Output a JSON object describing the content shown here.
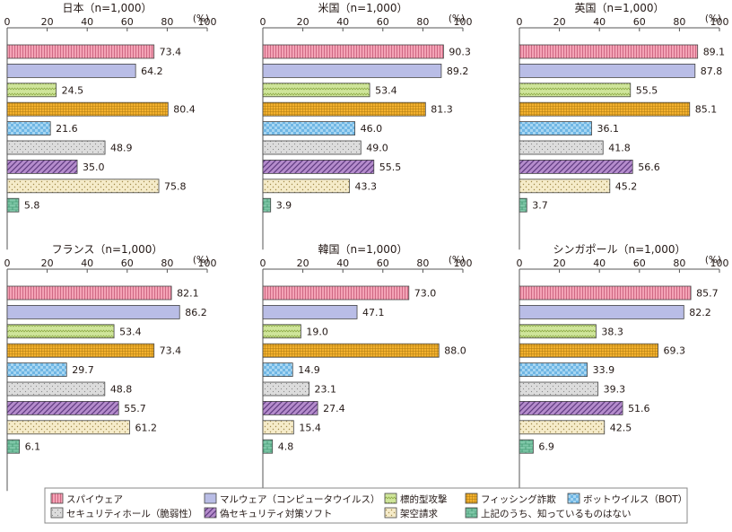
{
  "unit_label": "(%)",
  "axis_ticks": [
    0,
    20,
    40,
    60,
    80,
    100
  ],
  "series": [
    {
      "name": "スパイウェア",
      "color": "#f4a3b6",
      "pattern": "vlines"
    },
    {
      "name": "マルウェア（コンピュータウイルス）",
      "color": "#b9bde6",
      "pattern": "solid"
    },
    {
      "name": "標的型攻撃",
      "color": "#cfe59a",
      "pattern": "zigzag"
    },
    {
      "name": "フィッシング詐欺",
      "color": "#f3b12e",
      "pattern": "grid"
    },
    {
      "name": "ボットウイルス（BOT）",
      "color": "#a7d6f2",
      "pattern": "check"
    },
    {
      "name": "セキュリティホール（脆弱性）",
      "color": "#dcdcdc",
      "pattern": "dots"
    },
    {
      "name": "偽セキュリティ対策ソフト",
      "color": "#b58ccc",
      "pattern": "diag"
    },
    {
      "name": "架空請求",
      "color": "#f5ebc9",
      "pattern": "sparse"
    },
    {
      "name": "上記のうち、知っているものはない",
      "color": "#7fc7a8",
      "pattern": "brick"
    }
  ],
  "chart_data": [
    {
      "type": "bar",
      "title": "日本（n=1,000）",
      "xlim": [
        0,
        100
      ],
      "categories": [
        "スパイウェア",
        "マルウェア（コンピュータウイルス）",
        "標的型攻撃",
        "フィッシング詐欺",
        "ボットウイルス（BOT）",
        "セキュリティホール（脆弱性）",
        "偽セキュリティ対策ソフト",
        "架空請求",
        "上記のうち、知っているものはない"
      ],
      "values": [
        73.4,
        64.2,
        24.5,
        80.4,
        21.6,
        48.9,
        35.0,
        75.8,
        5.8
      ],
      "labels": [
        "73.4",
        "64.2",
        "24.5",
        "80.4",
        "21.6",
        "48.9",
        "35.0",
        "75.8",
        "5.8"
      ]
    },
    {
      "type": "bar",
      "title": "米国（n=1,000）",
      "xlim": [
        0,
        100
      ],
      "categories": [
        "スパイウェア",
        "マルウェア（コンピュータウイルス）",
        "標的型攻撃",
        "フィッシング詐欺",
        "ボットウイルス（BOT）",
        "セキュリティホール（脆弱性）",
        "偽セキュリティ対策ソフト",
        "架空請求",
        "上記のうち、知っているものはない"
      ],
      "values": [
        90.3,
        89.2,
        53.4,
        81.3,
        46.0,
        49.0,
        55.5,
        43.3,
        3.9
      ],
      "labels": [
        "90.3",
        "89.2",
        "53.4",
        "81.3",
        "46.0",
        "49.0",
        "55.5",
        "43.3",
        "3.9"
      ]
    },
    {
      "type": "bar",
      "title": "英国（n=1,000）",
      "xlim": [
        0,
        100
      ],
      "categories": [
        "スパイウェア",
        "マルウェア（コンピュータウイルス）",
        "標的型攻撃",
        "フィッシング詐欺",
        "ボットウイルス（BOT）",
        "セキュリティホール（脆弱性）",
        "偽セキュリティ対策ソフト",
        "架空請求",
        "上記のうち、知っているものはない"
      ],
      "values": [
        89.1,
        87.8,
        55.5,
        85.1,
        36.1,
        41.8,
        56.6,
        45.2,
        3.7
      ],
      "labels": [
        "89.1",
        "87.8",
        "55.5",
        "85.1",
        "36.1",
        "41.8",
        "56.6",
        "45.2",
        "3.7"
      ]
    },
    {
      "type": "bar",
      "title": "フランス（n=1,000）",
      "xlim": [
        0,
        100
      ],
      "categories": [
        "スパイウェア",
        "マルウェア（コンピュータウイルス）",
        "標的型攻撃",
        "フィッシング詐欺",
        "ボットウイルス（BOT）",
        "セキュリティホール（脆弱性）",
        "偽セキュリティ対策ソフト",
        "架空請求",
        "上記のうち、知っているものはない"
      ],
      "values": [
        82.1,
        86.2,
        53.4,
        73.4,
        29.7,
        48.8,
        55.7,
        61.2,
        6.1
      ],
      "labels": [
        "82.1",
        "86.2",
        "53.4",
        "73.4",
        "29.7",
        "48.8",
        "55.7",
        "61.2",
        "6.1"
      ]
    },
    {
      "type": "bar",
      "title": "韓国（n=1,000）",
      "xlim": [
        0,
        100
      ],
      "categories": [
        "スパイウェア",
        "マルウェア（コンピュータウイルス）",
        "標的型攻撃",
        "フィッシング詐欺",
        "ボットウイルス（BOT）",
        "セキュリティホール（脆弱性）",
        "偽セキュリティ対策ソフト",
        "架空請求",
        "上記のうち、知っているものはない"
      ],
      "values": [
        73.0,
        47.1,
        19.0,
        88.0,
        14.9,
        23.1,
        27.4,
        15.4,
        4.8
      ],
      "labels": [
        "73.0",
        "47.1",
        "19.0",
        "88.0",
        "14.9",
        "23.1",
        "27.4",
        "15.4",
        "4.8"
      ]
    },
    {
      "type": "bar",
      "title": "シンガポール（n=1,000）",
      "xlim": [
        0,
        100
      ],
      "categories": [
        "スパイウェア",
        "マルウェア（コンピュータウイルス）",
        "標的型攻撃",
        "フィッシング詐欺",
        "ボットウイルス（BOT）",
        "セキュリティホール（脆弱性）",
        "偽セキュリティ対策ソフト",
        "架空請求",
        "上記のうち、知っているものはない"
      ],
      "values": [
        85.7,
        82.2,
        38.3,
        69.3,
        33.9,
        39.3,
        51.6,
        42.5,
        6.9
      ],
      "labels": [
        "85.7",
        "82.2",
        "38.3",
        "69.3",
        "33.9",
        "39.3",
        "51.6",
        "42.5",
        "6.9"
      ]
    }
  ]
}
